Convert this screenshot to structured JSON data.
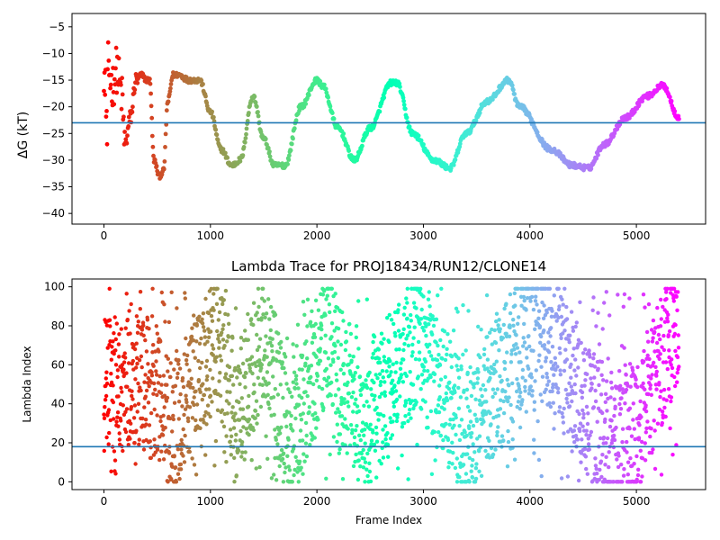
{
  "chart_data": [
    {
      "type": "scatter",
      "title": "",
      "xlabel": "",
      "ylabel": "ΔG (kT)",
      "xlim": [
        -300,
        5650
      ],
      "ylim": [
        -42,
        -2.5
      ],
      "xticks": [
        0,
        1000,
        2000,
        3000,
        4000,
        5000
      ],
      "yticks": [
        -40,
        -35,
        -30,
        -25,
        -20,
        -15,
        -10,
        -5
      ],
      "ytick_labels": [
        "−40",
        "−35",
        "−30",
        "−25",
        "−20",
        "−15",
        "−10",
        "−5"
      ],
      "hline": -23,
      "hline_color": "#1f77b4",
      "colormap": "rainbow (reversed: red at frame 0 → violet at last frame)",
      "x_range": [
        0,
        5400
      ],
      "keypoints_x": [
        0,
        30,
        80,
        120,
        160,
        200,
        250,
        300,
        350,
        400,
        430,
        470,
        520,
        560,
        600,
        650,
        700,
        800,
        900,
        1000,
        1100,
        1200,
        1280,
        1400,
        1500,
        1600,
        1700,
        1850,
        2000,
        2050,
        2200,
        2350,
        2500,
        2700,
        2750,
        2900,
        3100,
        3250,
        3400,
        3600,
        3800,
        3900,
        4200,
        4400,
        4550,
        4700,
        4900,
        5100,
        5250,
        5400
      ],
      "keypoints_y": [
        -15,
        -12,
        -16,
        -13,
        -17,
        -27,
        -22,
        -15,
        -14,
        -15,
        -15,
        -30,
        -33,
        -32,
        -19,
        -14,
        -14,
        -15,
        -15,
        -21,
        -28,
        -31,
        -30,
        -18,
        -26,
        -31,
        -31,
        -20,
        -15,
        -16,
        -24,
        -30,
        -24,
        -15.5,
        -15.5,
        -25,
        -30,
        -31.5,
        -25,
        -19,
        -15,
        -20,
        -28,
        -31,
        -31.5,
        -27,
        -22,
        -18,
        -16,
        -22
      ]
    },
    {
      "type": "scatter",
      "title": "Lambda Trace for PROJ18434/RUN12/CLONE14",
      "xlabel": "Frame Index",
      "ylabel": "Lambda Index",
      "xlim": [
        -300,
        5650
      ],
      "ylim": [
        -4,
        104
      ],
      "xticks": [
        0,
        1000,
        2000,
        3000,
        4000,
        5000
      ],
      "yticks": [
        0,
        20,
        40,
        60,
        80,
        100
      ],
      "hline": 18,
      "hline_color": "#1f77b4",
      "colormap": "rainbow (reversed: red at frame 0 → violet at last frame)",
      "x_range": [
        0,
        5400
      ],
      "band_centers_x": [
        150,
        400,
        650,
        870,
        1050,
        1250,
        1500,
        1750,
        2100,
        2450,
        2950,
        3400,
        3650,
        4000,
        4300,
        4700,
        5050,
        5350
      ],
      "band_centers_y": [
        50,
        50,
        30,
        50,
        75,
        35,
        75,
        20,
        75,
        25,
        75,
        20,
        45,
        80,
        65,
        20,
        30,
        80
      ]
    }
  ]
}
